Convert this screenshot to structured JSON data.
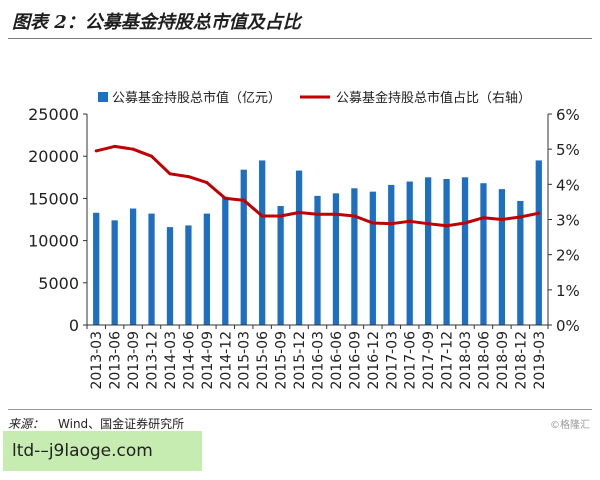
{
  "header": {
    "title": "图表 2：公募基金持股总市值及占比"
  },
  "footer": {
    "source_label": "来源：",
    "source_text": "Wind、国金证券研究所",
    "watermark": "©格隆汇",
    "overlay_text": "ltd-–j9laoge.com"
  },
  "chart_data": {
    "type": "bar",
    "categories": [
      "2013-03",
      "2013-06",
      "2013-09",
      "2013-12",
      "2014-03",
      "2014-06",
      "2014-09",
      "2014-12",
      "2015-03",
      "2015-06",
      "2015-09",
      "2015-12",
      "2016-03",
      "2016-06",
      "2016-09",
      "2016-12",
      "2017-03",
      "2017-06",
      "2017-09",
      "2017-12",
      "2018-03",
      "2018-06",
      "2018-09",
      "2018-12",
      "2019-03"
    ],
    "series": [
      {
        "name": "公募基金持股总市值（亿元）",
        "type": "bar",
        "axis": "left",
        "color": "#1f6fc0",
        "values": [
          13300,
          12400,
          13800,
          13200,
          11600,
          11800,
          13200,
          15200,
          18400,
          19500,
          14100,
          18300,
          15300,
          15600,
          16200,
          15800,
          16600,
          17000,
          17500,
          17300,
          17500,
          16800,
          16100,
          14700,
          19500
        ]
      },
      {
        "name": "公募基金持股总市值占比（右轴）",
        "type": "line",
        "axis": "right",
        "color": "#c00000",
        "values": [
          4.95,
          5.08,
          5.0,
          4.8,
          4.3,
          4.22,
          4.05,
          3.6,
          3.55,
          3.1,
          3.1,
          3.2,
          3.15,
          3.15,
          3.1,
          2.9,
          2.88,
          2.95,
          2.88,
          2.82,
          2.9,
          3.05,
          3.0,
          3.07,
          3.18
        ]
      }
    ],
    "y_left": {
      "min": 0,
      "max": 25000,
      "ticks": [
        "0",
        "5000",
        "10000",
        "15000",
        "20000",
        "25000"
      ]
    },
    "y_right": {
      "min": 0,
      "max": 6,
      "ticks": [
        "0%",
        "1%",
        "2%",
        "3%",
        "4%",
        "5%",
        "6%"
      ]
    },
    "legend": "top",
    "grid": false
  }
}
